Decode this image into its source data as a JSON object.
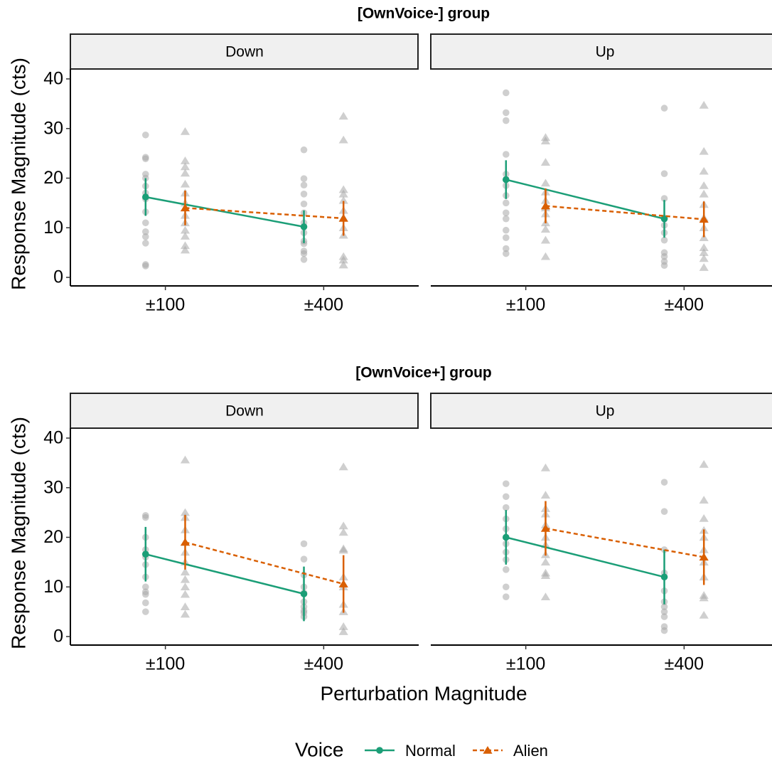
{
  "chart_data": [
    {
      "type": "line",
      "title": "[OwnVoice-] group",
      "strip": "Down",
      "ylabel": "Response Magnitude (cts)",
      "legend_title": "Voice",
      "categories": [
        "±100",
        "±400"
      ],
      "ylim": [
        -1.72,
        42
      ],
      "yticks": [
        0,
        10,
        20,
        30,
        40
      ],
      "series": [
        {
          "name": "Normal",
          "color": "#1b9e77",
          "marker": "circle",
          "dashed": false,
          "values": [
            16.2,
            10.2
          ],
          "errors": [
            3.8,
            3.3
          ],
          "points": [
            [
              28.7,
              24.2,
              23.9,
              20.8,
              20,
              18.4,
              17,
              15.8,
              13.2,
              11,
              9.2,
              8.2,
              6.9,
              2.6,
              2.3
            ],
            [
              25.7,
              19.9,
              18.6,
              16.8,
              14.8,
              13,
              11,
              9,
              7.3,
              6.8,
              5.3,
              4.8,
              3.6
            ]
          ]
        },
        {
          "name": "Alien",
          "color": "#d95f02",
          "marker": "triangle",
          "dashed": true,
          "values": [
            14,
            11.9
          ],
          "errors": [
            3.5,
            3.5
          ],
          "points": [
            [
              29.4,
              23.5,
              22.3,
              21,
              18.8,
              17,
              15,
              14,
              12.5,
              11,
              9.5,
              8.3,
              6.4,
              5.5
            ],
            [
              32.5,
              27.7,
              17.7,
              16.8,
              15.5,
              13.5,
              12,
              10,
              8.5,
              4.2,
              3.5,
              2.5
            ]
          ]
        }
      ]
    },
    {
      "type": "line",
      "strip": "Up",
      "categories": [
        "±100",
        "±400"
      ],
      "ylim": [
        -1.72,
        42
      ],
      "yticks": [
        0,
        10,
        20,
        30,
        40
      ],
      "series": [
        {
          "name": "Normal",
          "color": "#1b9e77",
          "marker": "circle",
          "dashed": false,
          "values": [
            19.7,
            11.8
          ],
          "errors": [
            3.9,
            3.8
          ],
          "points": [
            [
              37.2,
              33.2,
              31.6,
              24.8,
              20.8,
              18.5,
              16.5,
              15,
              13,
              11.8,
              9.5,
              8,
              5.8,
              4.8
            ],
            [
              34.1,
              20.9,
              15.9,
              12,
              10.5,
              9,
              7.5,
              5,
              4.2,
              3.2,
              2.4
            ]
          ]
        },
        {
          "name": "Alien",
          "color": "#d95f02",
          "marker": "triangle",
          "dashed": true,
          "values": [
            14.4,
            11.7
          ],
          "errors": [
            3.5,
            3.6
          ],
          "points": [
            [
              28.2,
              27.5,
              23.2,
              19,
              17.2,
              15.5,
              14,
              12.8,
              11,
              9.7,
              7.5,
              4.2
            ],
            [
              34.7,
              25.4,
              21.4,
              18.5,
              16.8,
              14.7,
              12,
              10,
              8,
              6,
              5,
              3.8,
              2
            ]
          ]
        }
      ]
    },
    {
      "type": "line",
      "title": "[OwnVoice+] group",
      "strip": "Down",
      "ylabel": "Response Magnitude (cts)",
      "xlabel": "Perturbation Magnitude",
      "categories": [
        "±100",
        "±400"
      ],
      "ylim": [
        -1.72,
        42
      ],
      "yticks": [
        0,
        10,
        20,
        30,
        40
      ],
      "series": [
        {
          "name": "Normal",
          "color": "#1b9e77",
          "marker": "circle",
          "dashed": false,
          "values": [
            16.6,
            8.6
          ],
          "errors": [
            5.5,
            5.5
          ],
          "points": [
            [
              24.4,
              24,
              20,
              17.5,
              16,
              14.5,
              12,
              10,
              9,
              8.5,
              6.8,
              5
            ],
            [
              18.7,
              15.6,
              12.4,
              10,
              8.8,
              7,
              6,
              5.2,
              4.8,
              4
            ]
          ]
        },
        {
          "name": "Alien",
          "color": "#d95f02",
          "marker": "triangle",
          "dashed": true,
          "values": [
            19,
            10.6
          ],
          "errors": [
            5.5,
            5.8
          ],
          "points": [
            [
              35.6,
              25,
              24,
              21.5,
              19,
              17,
              15,
              13,
              11.5,
              10,
              8.5,
              6,
              4.5
            ],
            [
              34.2,
              22.3,
              21,
              17.7,
              17.4,
              12,
              10,
              6.5,
              5,
              2,
              1
            ]
          ]
        }
      ]
    },
    {
      "type": "line",
      "strip": "Up",
      "categories": [
        "±100",
        "±400"
      ],
      "ylim": [
        -1.72,
        42
      ],
      "yticks": [
        0,
        10,
        20,
        30,
        40
      ],
      "series": [
        {
          "name": "Normal",
          "color": "#1b9e77",
          "marker": "circle",
          "dashed": false,
          "values": [
            20,
            12
          ],
          "errors": [
            5.5,
            5.5
          ],
          "points": [
            [
              30.8,
              28.2,
              26,
              23.7,
              21.7,
              20,
              18.7,
              17,
              15.5,
              13.5,
              10,
              8
            ],
            [
              31.1,
              25.2,
              17.5,
              12.8,
              9.2,
              7,
              6,
              5,
              4,
              2,
              1.2
            ]
          ]
        },
        {
          "name": "Alien",
          "color": "#d95f02",
          "marker": "triangle",
          "dashed": true,
          "values": [
            21.8,
            16
          ],
          "errors": [
            5.5,
            5.6
          ],
          "points": [
            [
              34,
              28.5,
              25.8,
              24.7,
              22.5,
              20,
              18.5,
              16.5,
              15,
              12.8,
              12.3,
              8
            ],
            [
              34.7,
              27.5,
              23.8,
              21.4,
              20,
              17.5,
              15,
              12,
              8.3,
              7.8,
              4.3
            ]
          ]
        }
      ]
    }
  ]
}
